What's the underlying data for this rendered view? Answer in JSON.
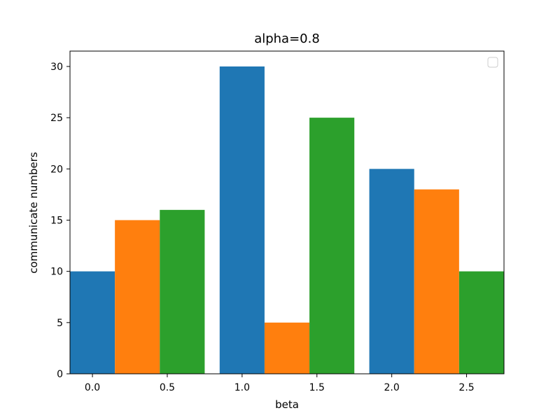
{
  "chart_data": {
    "type": "bar",
    "title": "alpha=0.8",
    "xlabel": "beta",
    "ylabel": "communicate numbers",
    "grid": false,
    "legend": "top-right (empty)",
    "xlim": [
      -0.15,
      2.75
    ],
    "ylim": [
      0,
      31.5
    ],
    "xticks": [
      0.0,
      0.5,
      1.0,
      1.5,
      2.0,
      2.5
    ],
    "xtick_labels": [
      "0.0",
      "0.5",
      "1.0",
      "1.5",
      "2.0",
      "2.5"
    ],
    "yticks": [
      0,
      5,
      10,
      15,
      20,
      25,
      30
    ],
    "ytick_labels": [
      "0",
      "5",
      "10",
      "15",
      "20",
      "25",
      "30"
    ],
    "bar_width": 0.3,
    "series": [
      {
        "color": "#1f77b4",
        "x": [
          0.0,
          1.0,
          2.0
        ],
        "values": [
          10,
          30,
          20
        ]
      },
      {
        "color": "#ff7f0e",
        "x": [
          0.3,
          1.3,
          2.3
        ],
        "values": [
          15,
          5,
          18
        ]
      },
      {
        "color": "#2ca02c",
        "x": [
          0.6,
          1.6,
          2.6
        ],
        "values": [
          16,
          25,
          10
        ]
      }
    ]
  }
}
